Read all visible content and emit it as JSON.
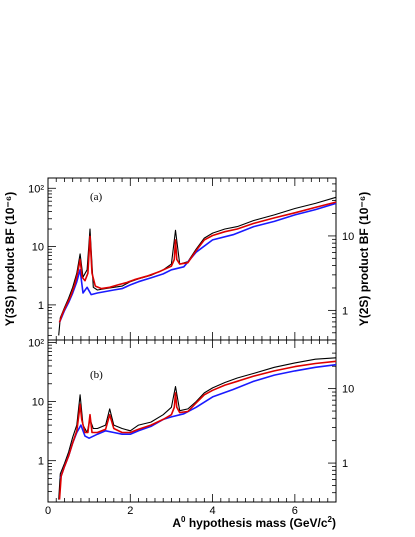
{
  "chart_data": {
    "type": "line",
    "x_axis": {
      "label": "A0 hypothesis mass (GeV/c2)",
      "label_main": "A",
      "label_sup": "0",
      "label_mid": " hypothesis mass (GeV/c",
      "label_sup2": "2",
      "label_end": ")",
      "range": [
        0,
        7
      ],
      "ticks": [
        0,
        2,
        4,
        6
      ],
      "tick_labels": [
        "0",
        "2",
        "4",
        "6"
      ]
    },
    "left_axis_label": "Υ(3S) product BF (10⁻⁶)",
    "right_axis_label": "Υ(2S) product BF (10⁻⁶)",
    "panels": [
      {
        "tag": "(a)",
        "y_scale": "log",
        "y_range": [
          0.25,
          150
        ],
        "y_ticks": [
          1,
          10,
          100
        ],
        "y_tick_labels": [
          "1",
          "10",
          "10²"
        ],
        "right_y_range": [
          0.4,
          60
        ],
        "right_ticks": [
          1,
          10
        ],
        "right_tick_labels": [
          "1",
          "10"
        ],
        "series": [
          {
            "color": "#000000",
            "x": [
              0.26,
              0.3,
              0.4,
              0.5,
              0.6,
              0.7,
              0.78,
              0.85,
              0.95,
              1.02,
              1.1,
              1.2,
              1.4,
              1.6,
              1.8,
              2.0,
              2.2,
              2.5,
              2.8,
              3.0,
              3.1,
              3.2,
              3.4,
              3.6,
              3.8,
              4.0,
              4.3,
              4.6,
              5.0,
              5.5,
              6.0,
              6.5,
              7.0
            ],
            "y": [
              0.3,
              0.6,
              0.9,
              1.3,
              2.0,
              3.5,
              7.5,
              3.0,
              4.0,
              20.0,
              2.0,
              1.8,
              1.9,
              2.0,
              2.1,
              2.5,
              2.8,
              3.2,
              4.0,
              5.0,
              19.0,
              5.0,
              5.5,
              9.0,
              14.0,
              17.0,
              20.0,
              22.0,
              28.0,
              35.0,
              45.0,
              55.0,
              70.0
            ]
          },
          {
            "color": "#1a1aff",
            "x": [
              0.28,
              0.4,
              0.5,
              0.6,
              0.7,
              0.78,
              0.85,
              0.95,
              1.05,
              1.2,
              1.4,
              1.6,
              1.8,
              2.0,
              2.2,
              2.5,
              2.8,
              3.0,
              3.3,
              3.6,
              4.0,
              4.5,
              5.0,
              5.5,
              6.0,
              6.5,
              7.0
            ],
            "y": [
              0.5,
              0.8,
              1.1,
              1.6,
              2.5,
              4.0,
              1.6,
              2.0,
              1.5,
              1.6,
              1.7,
              1.8,
              1.9,
              2.2,
              2.5,
              2.9,
              3.4,
              4.0,
              4.5,
              8.0,
              13.0,
              16.0,
              22.0,
              27.0,
              35.0,
              43.0,
              55.0
            ]
          },
          {
            "color": "#dd0000",
            "x": [
              0.28,
              0.35,
              0.45,
              0.55,
              0.65,
              0.72,
              0.78,
              0.83,
              0.9,
              0.97,
              1.02,
              1.07,
              1.15,
              1.3,
              1.5,
              1.7,
              1.9,
              2.1,
              2.4,
              2.7,
              3.0,
              3.07,
              3.1,
              3.13,
              3.2,
              3.4,
              3.6,
              3.8,
              4.0,
              4.3,
              4.6,
              5.0,
              5.5,
              6.0,
              6.5,
              7.0
            ],
            "y": [
              0.5,
              0.7,
              1.0,
              1.4,
              2.2,
              3.5,
              6.0,
              3.0,
              2.6,
              3.5,
              15.0,
              3.5,
              2.1,
              1.9,
              2.0,
              2.2,
              2.4,
              2.7,
              3.1,
              3.7,
              4.6,
              6.0,
              13.0,
              6.0,
              5.0,
              5.3,
              8.5,
              13.0,
              15.5,
              18.0,
              20.0,
              25.0,
              31.0,
              38.0,
              47.0,
              58.0
            ]
          }
        ]
      },
      {
        "tag": "(b)",
        "y_scale": "log",
        "y_range": [
          0.2,
          110
        ],
        "y_ticks": [
          1,
          10,
          100
        ],
        "y_tick_labels": [
          "1",
          "10",
          "10²"
        ],
        "right_y_range": [
          0.3,
          45
        ],
        "right_ticks": [
          1,
          10
        ],
        "right_tick_labels": [
          "1",
          "10"
        ],
        "series": [
          {
            "color": "#000000",
            "x": [
              0.26,
              0.3,
              0.4,
              0.5,
              0.6,
              0.7,
              0.78,
              0.85,
              0.95,
              1.02,
              1.1,
              1.2,
              1.4,
              1.5,
              1.6,
              1.8,
              2.0,
              2.2,
              2.5,
              2.8,
              3.0,
              3.1,
              3.2,
              3.4,
              3.6,
              3.8,
              4.0,
              4.3,
              4.6,
              5.0,
              5.5,
              6.0,
              6.5,
              7.0
            ],
            "y": [
              0.22,
              0.6,
              0.9,
              1.4,
              2.5,
              4.0,
              13.0,
              4.0,
              3.0,
              5.0,
              3.5,
              3.5,
              4.0,
              7.5,
              4.0,
              3.5,
              3.2,
              4.0,
              4.5,
              6.0,
              8.0,
              18.0,
              7.0,
              7.5,
              10.0,
              14.0,
              17.0,
              21.0,
              25.0,
              30.0,
              38.0,
              45.0,
              52.0,
              55.0
            ]
          },
          {
            "color": "#1a1aff",
            "x": [
              0.3,
              0.4,
              0.5,
              0.6,
              0.7,
              0.8,
              0.9,
              1.0,
              1.2,
              1.4,
              1.6,
              1.8,
              2.0,
              2.2,
              2.5,
              2.8,
              3.0,
              3.3,
              3.6,
              4.0,
              4.5,
              5.0,
              5.5,
              6.0,
              6.5,
              7.0
            ],
            "y": [
              0.5,
              0.8,
              1.2,
              2.0,
              3.0,
              4.0,
              2.6,
              2.4,
              2.8,
              3.2,
              3.0,
              2.8,
              2.8,
              3.2,
              3.8,
              5.0,
              5.5,
              6.2,
              8.0,
              12.0,
              16.0,
              22.0,
              28.0,
              33.0,
              38.0,
              42.0
            ]
          },
          {
            "color": "#dd0000",
            "x": [
              0.28,
              0.32,
              0.4,
              0.5,
              0.6,
              0.7,
              0.75,
              0.78,
              0.82,
              0.9,
              0.97,
              1.02,
              1.07,
              1.2,
              1.4,
              1.5,
              1.6,
              1.8,
              2.0,
              2.2,
              2.5,
              2.8,
              3.0,
              3.07,
              3.1,
              3.13,
              3.2,
              3.4,
              3.6,
              3.8,
              4.0,
              4.3,
              4.6,
              5.0,
              5.5,
              6.0,
              6.5,
              7.0
            ],
            "y": [
              0.22,
              0.55,
              0.8,
              1.2,
              2.0,
              3.2,
              6.0,
              9.0,
              5.0,
              3.0,
              3.0,
              6.0,
              3.0,
              3.0,
              3.4,
              6.0,
              3.5,
              3.0,
              3.0,
              3.4,
              4.0,
              5.0,
              6.0,
              8.0,
              14.0,
              8.0,
              6.5,
              6.8,
              9.5,
              13.0,
              15.5,
              19.0,
              22.0,
              27.0,
              33.0,
              39.0,
              44.0,
              48.0
            ]
          }
        ]
      }
    ]
  }
}
